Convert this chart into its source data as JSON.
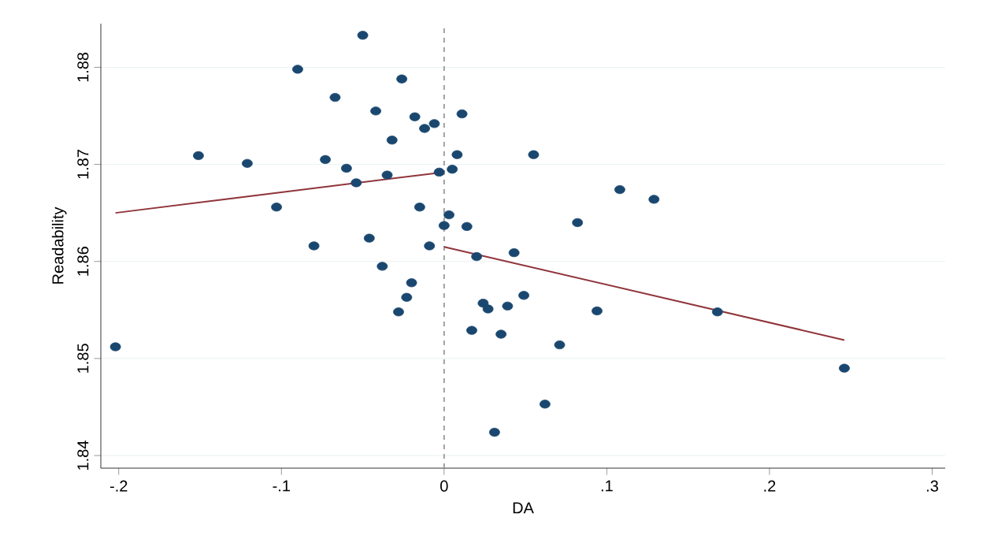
{
  "chart_data": {
    "type": "scatter",
    "xlabel": "DA",
    "ylabel": "Readability",
    "xlim": [
      -0.211,
      0.308
    ],
    "ylim": [
      1.8387,
      1.8845
    ],
    "xticks": [
      {
        "value": -0.2,
        "label": "-.2"
      },
      {
        "value": -0.1,
        "label": "-.1"
      },
      0,
      {
        "value": 0.1,
        "label": ".1"
      },
      {
        "value": 0.2,
        "label": ".2"
      },
      {
        "value": 0.3,
        "label": ".3"
      }
    ],
    "yticks": [
      1.84,
      1.85,
      1.86,
      1.87,
      1.88
    ],
    "grid": "y",
    "ref_lines": [
      {
        "axis": "x",
        "value": 0,
        "color": "#a0a0a0",
        "line_style": "dashed"
      }
    ],
    "series": [
      {
        "color": "#1a476f",
        "marker": "circle",
        "x": [
          -0.202,
          -0.151,
          -0.121,
          -0.103,
          -0.09,
          -0.08,
          -0.073,
          -0.067,
          -0.06,
          -0.054,
          -0.05,
          -0.046,
          -0.042,
          -0.038,
          -0.035,
          -0.032,
          -0.028,
          -0.026,
          -0.023,
          -0.02,
          -0.018,
          -0.015,
          -0.012,
          -0.009,
          -0.006,
          -0.003,
          0.0,
          0.003,
          0.005,
          0.008,
          0.011,
          0.014,
          0.02,
          0.017,
          0.024,
          0.027,
          0.035,
          0.039,
          0.043,
          0.049,
          0.055,
          0.062,
          0.031,
          0.071,
          0.082,
          0.094,
          0.108,
          0.129,
          0.168,
          0.246
        ],
        "values": [
          1.8512,
          1.8709,
          1.8701,
          1.8656,
          1.8798,
          1.8616,
          1.8705,
          1.8769,
          1.8696,
          1.8681,
          1.8833,
          1.8624,
          1.8755,
          1.8595,
          1.8689,
          1.8725,
          1.8548,
          1.8788,
          1.8563,
          1.8578,
          1.8749,
          1.8656,
          1.8737,
          1.8616,
          1.8742,
          1.8692,
          1.8637,
          1.8648,
          1.8695,
          1.871,
          1.8752,
          1.8636,
          1.8605,
          1.8529,
          1.8557,
          1.8551,
          1.8525,
          1.8554,
          1.8609,
          1.8565,
          1.871,
          1.8453,
          1.8424,
          1.8514,
          1.864,
          1.8549,
          1.8674,
          1.8664,
          1.8548,
          1.849
        ]
      },
      {
        "type": "line",
        "color": "#90353b",
        "marker": "none",
        "x": [
          -0.202,
          0
        ],
        "values": [
          1.865,
          1.8692
        ]
      },
      {
        "type": "line",
        "color": "#90353b",
        "marker": "none",
        "x": [
          0,
          0.246
        ],
        "values": [
          1.8615,
          1.8519
        ]
      }
    ]
  }
}
